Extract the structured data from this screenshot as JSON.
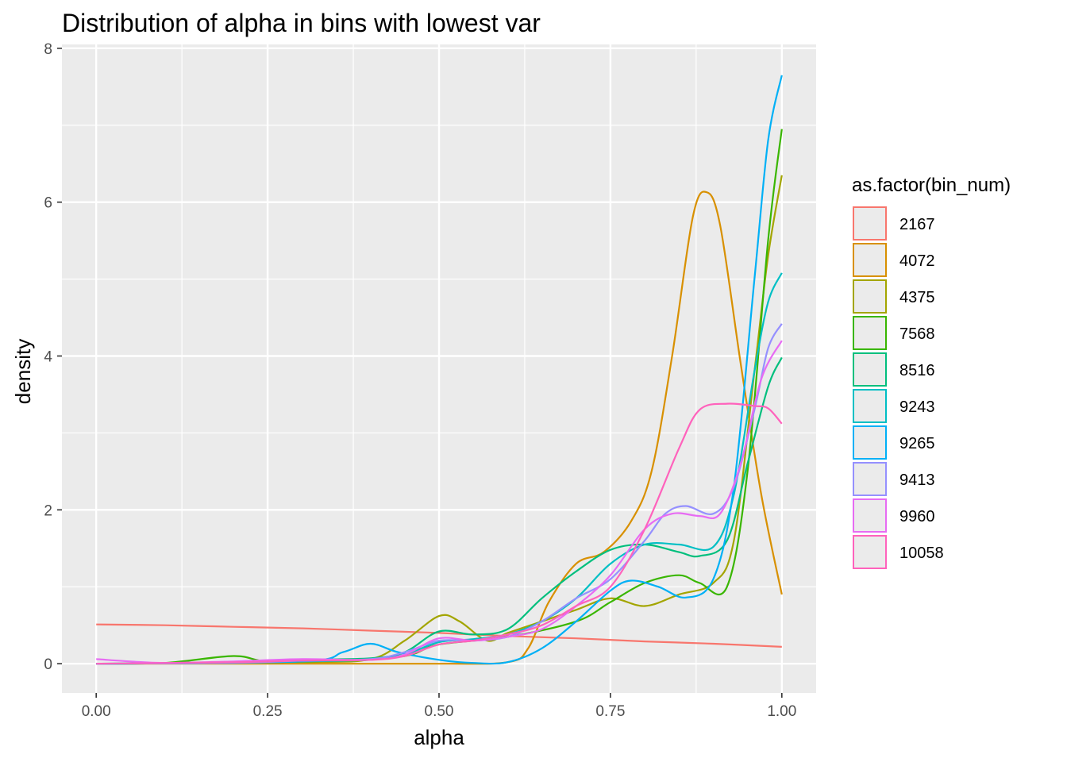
{
  "chart_data": {
    "type": "line",
    "title": "Distribution of alpha in bins with lowest var",
    "xlabel": "alpha",
    "ylabel": "density",
    "xlim": [
      -0.05,
      1.05
    ],
    "ylim": [
      -0.38,
      8.05
    ],
    "x_ticks": [
      0.0,
      0.25,
      0.5,
      0.75,
      1.0
    ],
    "x_tick_labels": [
      "0.00",
      "0.25",
      "0.50",
      "0.75",
      "1.00"
    ],
    "y_ticks": [
      0,
      2,
      4,
      6,
      8
    ],
    "y_tick_labels": [
      "0",
      "2",
      "4",
      "6",
      "8"
    ],
    "grid": true,
    "background": "#EBEBEB",
    "legend": {
      "title": "as.factor(bin_num)",
      "position": "right"
    },
    "series": [
      {
        "name": "2167",
        "color": "#F8766D",
        "points": [
          [
            0,
            0.51
          ],
          [
            0.1,
            0.5
          ],
          [
            0.2,
            0.48
          ],
          [
            0.3,
            0.46
          ],
          [
            0.4,
            0.43
          ],
          [
            0.5,
            0.4
          ],
          [
            0.6,
            0.36
          ],
          [
            0.7,
            0.33
          ],
          [
            0.8,
            0.29
          ],
          [
            0.9,
            0.26
          ],
          [
            1.0,
            0.22
          ]
        ]
      },
      {
        "name": "4072",
        "color": "#D89000",
        "points": [
          [
            0,
            0
          ],
          [
            0.3,
            0
          ],
          [
            0.5,
            0
          ],
          [
            0.6,
            0.02
          ],
          [
            0.63,
            0.2
          ],
          [
            0.66,
            0.8
          ],
          [
            0.7,
            1.3
          ],
          [
            0.74,
            1.45
          ],
          [
            0.78,
            1.85
          ],
          [
            0.81,
            2.5
          ],
          [
            0.84,
            4.0
          ],
          [
            0.87,
            5.8
          ],
          [
            0.89,
            6.13
          ],
          [
            0.91,
            5.7
          ],
          [
            0.94,
            3.9
          ],
          [
            0.97,
            2.2
          ],
          [
            1.0,
            0.9
          ]
        ]
      },
      {
        "name": "4375",
        "color": "#A3A500",
        "points": [
          [
            0,
            0
          ],
          [
            0.3,
            0.02
          ],
          [
            0.4,
            0.06
          ],
          [
            0.45,
            0.3
          ],
          [
            0.5,
            0.62
          ],
          [
            0.53,
            0.55
          ],
          [
            0.57,
            0.3
          ],
          [
            0.6,
            0.4
          ],
          [
            0.65,
            0.55
          ],
          [
            0.7,
            0.7
          ],
          [
            0.75,
            0.85
          ],
          [
            0.8,
            0.75
          ],
          [
            0.85,
            0.9
          ],
          [
            0.9,
            1.05
          ],
          [
            0.93,
            1.6
          ],
          [
            0.96,
            3.8
          ],
          [
            0.98,
            5.3
          ],
          [
            1.0,
            6.35
          ]
        ]
      },
      {
        "name": "7568",
        "color": "#39B600",
        "points": [
          [
            0,
            0
          ],
          [
            0.1,
            0.01
          ],
          [
            0.2,
            0.1
          ],
          [
            0.25,
            0.03
          ],
          [
            0.35,
            0.04
          ],
          [
            0.45,
            0.1
          ],
          [
            0.5,
            0.25
          ],
          [
            0.6,
            0.35
          ],
          [
            0.7,
            0.55
          ],
          [
            0.75,
            0.8
          ],
          [
            0.8,
            1.05
          ],
          [
            0.85,
            1.15
          ],
          [
            0.88,
            1.05
          ],
          [
            0.92,
            1.0
          ],
          [
            0.95,
            2.5
          ],
          [
            0.98,
            5.5
          ],
          [
            1.0,
            6.95
          ]
        ]
      },
      {
        "name": "8516",
        "color": "#00BF7D",
        "points": [
          [
            0,
            0
          ],
          [
            0.2,
            0.02
          ],
          [
            0.3,
            0.05
          ],
          [
            0.4,
            0.07
          ],
          [
            0.45,
            0.15
          ],
          [
            0.5,
            0.42
          ],
          [
            0.55,
            0.38
          ],
          [
            0.6,
            0.45
          ],
          [
            0.65,
            0.85
          ],
          [
            0.7,
            1.2
          ],
          [
            0.75,
            1.48
          ],
          [
            0.8,
            1.55
          ],
          [
            0.85,
            1.45
          ],
          [
            0.88,
            1.4
          ],
          [
            0.92,
            1.6
          ],
          [
            0.95,
            2.6
          ],
          [
            0.98,
            3.6
          ],
          [
            1.0,
            3.98
          ]
        ]
      },
      {
        "name": "9243",
        "color": "#00BFC4",
        "points": [
          [
            0,
            0
          ],
          [
            0.2,
            0.01
          ],
          [
            0.3,
            0.03
          ],
          [
            0.4,
            0.05
          ],
          [
            0.45,
            0.12
          ],
          [
            0.5,
            0.28
          ],
          [
            0.55,
            0.32
          ],
          [
            0.6,
            0.38
          ],
          [
            0.65,
            0.55
          ],
          [
            0.7,
            0.85
          ],
          [
            0.75,
            1.3
          ],
          [
            0.8,
            1.55
          ],
          [
            0.85,
            1.55
          ],
          [
            0.9,
            1.52
          ],
          [
            0.93,
            2.2
          ],
          [
            0.96,
            3.8
          ],
          [
            0.98,
            4.7
          ],
          [
            1.0,
            5.08
          ]
        ]
      },
      {
        "name": "9265",
        "color": "#00B0F6",
        "points": [
          [
            0,
            0
          ],
          [
            0.3,
            0.03
          ],
          [
            0.36,
            0.15
          ],
          [
            0.4,
            0.26
          ],
          [
            0.44,
            0.15
          ],
          [
            0.5,
            0.05
          ],
          [
            0.55,
            0.01
          ],
          [
            0.6,
            0.02
          ],
          [
            0.65,
            0.2
          ],
          [
            0.7,
            0.55
          ],
          [
            0.75,
            0.95
          ],
          [
            0.78,
            1.08
          ],
          [
            0.82,
            1.0
          ],
          [
            0.86,
            0.86
          ],
          [
            0.9,
            1.1
          ],
          [
            0.93,
            2.3
          ],
          [
            0.96,
            5.0
          ],
          [
            0.98,
            6.8
          ],
          [
            1.0,
            7.65
          ]
        ]
      },
      {
        "name": "9413",
        "color": "#9590FF",
        "points": [
          [
            0,
            0
          ],
          [
            0.2,
            0.01
          ],
          [
            0.3,
            0.04
          ],
          [
            0.4,
            0.06
          ],
          [
            0.45,
            0.15
          ],
          [
            0.5,
            0.3
          ],
          [
            0.55,
            0.3
          ],
          [
            0.6,
            0.35
          ],
          [
            0.65,
            0.55
          ],
          [
            0.7,
            0.85
          ],
          [
            0.75,
            1.1
          ],
          [
            0.8,
            1.6
          ],
          [
            0.83,
            1.95
          ],
          [
            0.86,
            2.05
          ],
          [
            0.9,
            1.95
          ],
          [
            0.93,
            2.3
          ],
          [
            0.96,
            3.3
          ],
          [
            0.98,
            4.1
          ],
          [
            1.0,
            4.42
          ]
        ]
      },
      {
        "name": "9960",
        "color": "#E76BF3",
        "points": [
          [
            0,
            0.06
          ],
          [
            0.05,
            0.03
          ],
          [
            0.1,
            0.01
          ],
          [
            0.2,
            0.03
          ],
          [
            0.3,
            0.06
          ],
          [
            0.4,
            0.05
          ],
          [
            0.45,
            0.12
          ],
          [
            0.5,
            0.33
          ],
          [
            0.55,
            0.3
          ],
          [
            0.6,
            0.35
          ],
          [
            0.65,
            0.45
          ],
          [
            0.7,
            0.75
          ],
          [
            0.75,
            1.15
          ],
          [
            0.8,
            1.75
          ],
          [
            0.84,
            1.95
          ],
          [
            0.88,
            1.92
          ],
          [
            0.91,
            1.95
          ],
          [
            0.94,
            2.6
          ],
          [
            0.97,
            3.7
          ],
          [
            1.0,
            4.2
          ]
        ]
      },
      {
        "name": "10058",
        "color": "#FF62BC",
        "points": [
          [
            0,
            0
          ],
          [
            0.2,
            0.02
          ],
          [
            0.3,
            0.04
          ],
          [
            0.4,
            0.05
          ],
          [
            0.45,
            0.1
          ],
          [
            0.5,
            0.25
          ],
          [
            0.55,
            0.3
          ],
          [
            0.6,
            0.38
          ],
          [
            0.65,
            0.5
          ],
          [
            0.7,
            0.75
          ],
          [
            0.75,
            1.0
          ],
          [
            0.8,
            1.75
          ],
          [
            0.85,
            2.8
          ],
          [
            0.88,
            3.3
          ],
          [
            0.92,
            3.38
          ],
          [
            0.96,
            3.35
          ],
          [
            0.98,
            3.32
          ],
          [
            1.0,
            3.12
          ]
        ]
      }
    ]
  }
}
